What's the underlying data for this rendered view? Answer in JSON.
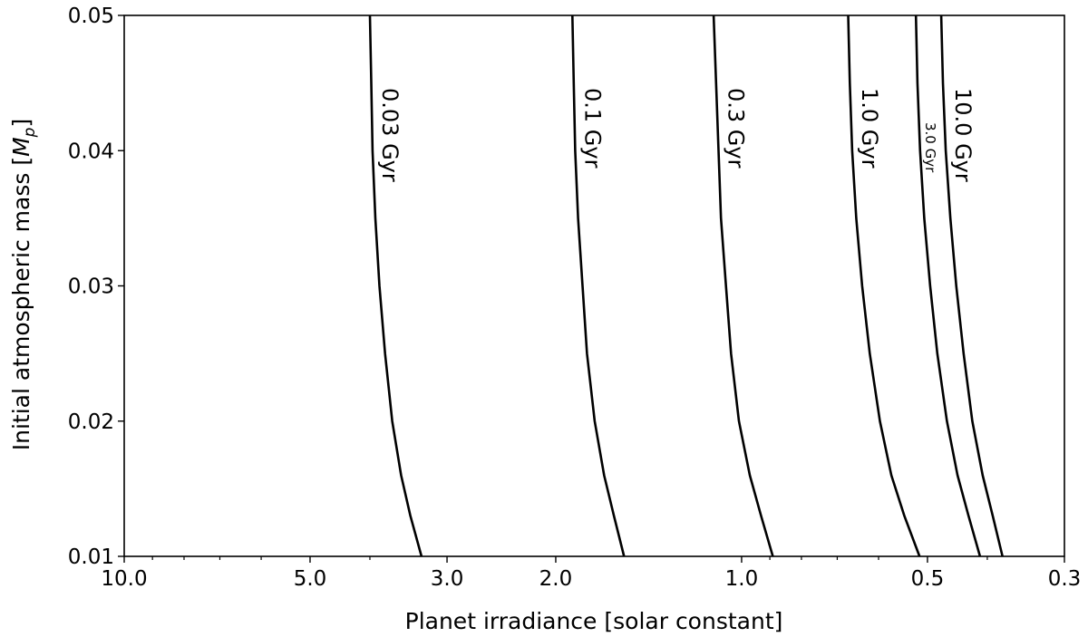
{
  "chart_data": {
    "type": "line",
    "title": "",
    "xlabel": "Planet irradiance [solar constant]",
    "ylabel_prefix": "Initial atmospheric mass [",
    "ylabel_var": "M",
    "ylabel_sub": "p",
    "ylabel_suffix": "]",
    "x_scale": "log",
    "x_inverted": true,
    "xlim": [
      10.0,
      0.3
    ],
    "ylim": [
      0.01,
      0.05
    ],
    "grid": false,
    "x_ticks": [
      "10.0",
      "5.0",
      "3.0",
      "2.0",
      "1.0",
      "0.5",
      "0.3"
    ],
    "x_tick_values": [
      10.0,
      5.0,
      3.0,
      2.0,
      1.0,
      0.5,
      0.3
    ],
    "y_ticks": [
      "0.01",
      "0.02",
      "0.03",
      "0.04",
      "0.05"
    ],
    "y_tick_values": [
      0.01,
      0.02,
      0.03,
      0.04,
      0.05
    ],
    "series": [
      {
        "name": "0.03 Gyr",
        "label": "0.03 Gyr",
        "x": [
          4.0,
          3.98,
          3.96,
          3.92,
          3.86,
          3.78,
          3.68,
          3.56,
          3.44,
          3.3
        ],
        "y": [
          0.05,
          0.045,
          0.04,
          0.035,
          0.03,
          0.025,
          0.02,
          0.016,
          0.013,
          0.01
        ]
      },
      {
        "name": "0.1 Gyr",
        "label": "0.1 Gyr",
        "x": [
          1.88,
          1.87,
          1.86,
          1.84,
          1.81,
          1.78,
          1.73,
          1.67,
          1.61,
          1.55
        ],
        "y": [
          0.05,
          0.045,
          0.04,
          0.035,
          0.03,
          0.025,
          0.02,
          0.016,
          0.013,
          0.01
        ]
      },
      {
        "name": "0.3 Gyr",
        "label": "0.3 Gyr",
        "x": [
          1.11,
          1.1,
          1.09,
          1.08,
          1.06,
          1.04,
          1.01,
          0.97,
          0.93,
          0.89
        ],
        "y": [
          0.05,
          0.045,
          0.04,
          0.035,
          0.03,
          0.025,
          0.02,
          0.016,
          0.013,
          0.01
        ]
      },
      {
        "name": "1.0 Gyr",
        "label": "1.0 Gyr",
        "x": [
          0.672,
          0.668,
          0.662,
          0.652,
          0.638,
          0.62,
          0.597,
          0.572,
          0.545,
          0.515
        ],
        "y": [
          0.05,
          0.045,
          0.04,
          0.035,
          0.03,
          0.025,
          0.02,
          0.016,
          0.013,
          0.01
        ]
      },
      {
        "name": "3.0 Gyr",
        "label": "3.0 Gyr",
        "x": [
          0.522,
          0.519,
          0.514,
          0.506,
          0.495,
          0.482,
          0.465,
          0.447,
          0.429,
          0.411
        ],
        "y": [
          0.05,
          0.045,
          0.04,
          0.035,
          0.03,
          0.025,
          0.02,
          0.016,
          0.013,
          0.01
        ]
      },
      {
        "name": "10.0 Gyr",
        "label": "10.0 Gyr",
        "x": [
          0.475,
          0.472,
          0.467,
          0.459,
          0.449,
          0.437,
          0.423,
          0.407,
          0.392,
          0.378
        ],
        "y": [
          0.05,
          0.045,
          0.04,
          0.035,
          0.03,
          0.025,
          0.02,
          0.016,
          0.013,
          0.01
        ]
      }
    ]
  }
}
